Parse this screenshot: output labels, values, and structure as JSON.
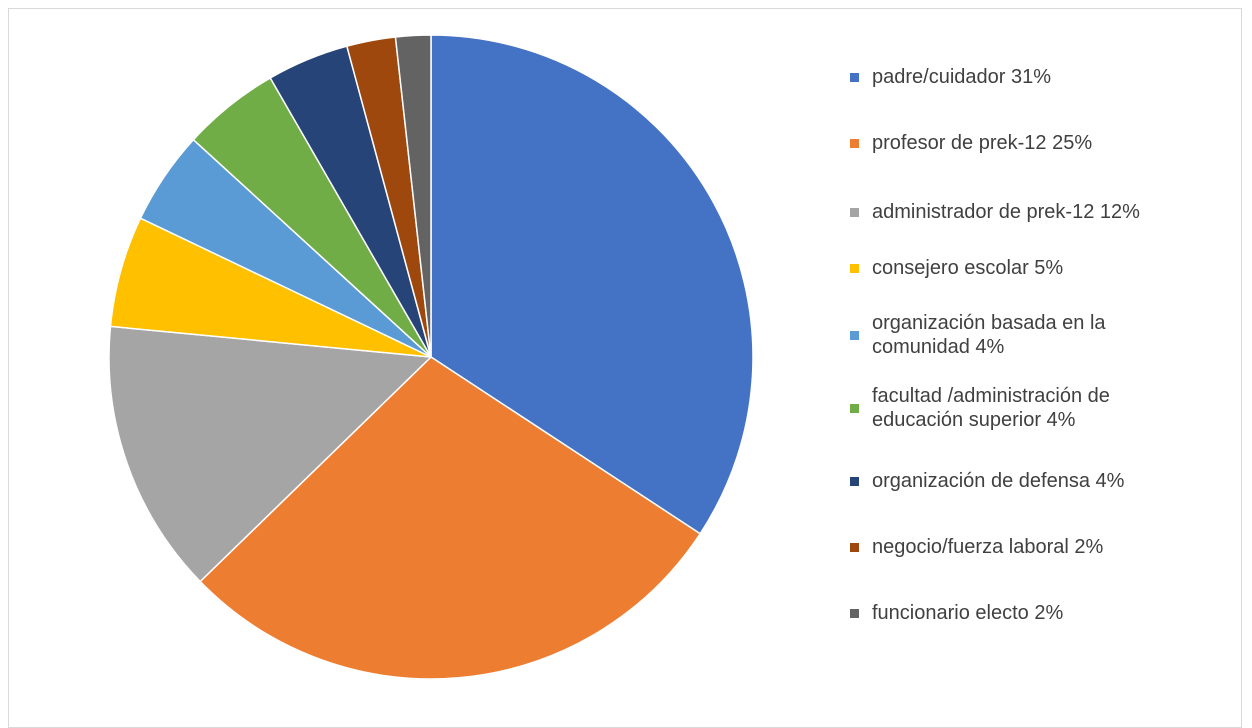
{
  "chart_data": {
    "type": "pie",
    "title": "",
    "legend_position": "right",
    "start_angle_deg": 0,
    "direction": "clockwise",
    "slices": [
      {
        "label": "padre/cuidador  31%",
        "value": 35.0,
        "color": "#4472C4"
      },
      {
        "label": "profesor de prek-12  25%",
        "value": 29.1,
        "color": "#ED7D31"
      },
      {
        "label": "administrador de prek-12  12%",
        "value": 14.1,
        "color": "#A5A5A5"
      },
      {
        "label": "consejero escolar  5%",
        "value": 5.7,
        "color": "#FFC000"
      },
      {
        "label": "organización basada en la comunidad  4%",
        "value": 4.8,
        "color": "#5B9BD5"
      },
      {
        "label": "facultad /administración de educación superior  4%",
        "value": 5.0,
        "color": "#70AD47"
      },
      {
        "label": "organización de defensa  4%",
        "value": 4.2,
        "color": "#264478"
      },
      {
        "label": "negocio/fuerza laboral  2%",
        "value": 2.5,
        "color": "#9E480E"
      },
      {
        "label": "funcionario electo 2%",
        "value": 1.8,
        "color": "#636363"
      }
    ]
  },
  "legend": {
    "items": [
      {
        "label": "padre/cuidador  31%",
        "color": "#4472C4"
      },
      {
        "label": "profesor de prek-12  25%",
        "color": "#ED7D31"
      },
      {
        "label": "administrador de prek-12  12%",
        "color": "#A5A5A5"
      },
      {
        "label": "consejero escolar  5%",
        "color": "#FFC000"
      },
      {
        "label": "organización basada en la\ncomunidad  4%",
        "color": "#5B9BD5"
      },
      {
        "label": "facultad /administración de\neducación superior  4%",
        "color": "#70AD47"
      },
      {
        "label": "organización de defensa  4%",
        "color": "#264478"
      },
      {
        "label": "negocio/fuerza laboral  2%",
        "color": "#9E480E"
      },
      {
        "label": "funcionario electo 2%",
        "color": "#636363"
      }
    ]
  }
}
